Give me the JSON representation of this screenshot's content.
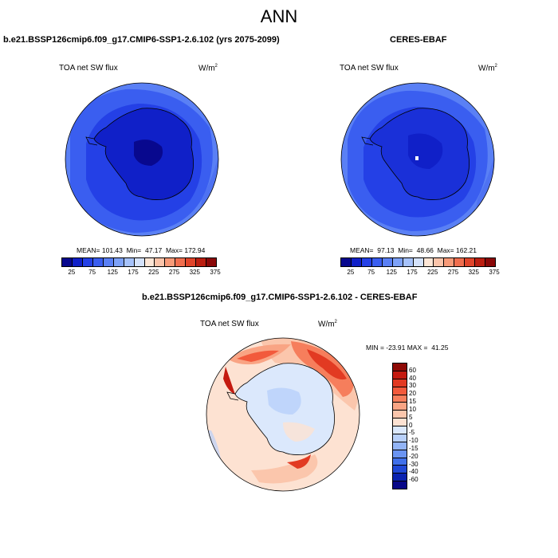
{
  "figure": {
    "title": "ANN"
  },
  "panels": [
    {
      "title": "b.e21.BSSP126cmip6.f09_g17.CMIP6-SSP1-2.6.102 (yrs 2075-2099)",
      "variable": "TOA net SW flux",
      "units": "W/m",
      "units_exp": "2",
      "stats": "MEAN= 101.43  Min=  47.17  Max= 172.94"
    },
    {
      "title": "CERES-EBAF",
      "variable": "TOA net SW flux",
      "units": "W/m",
      "units_exp": "2",
      "stats": "MEAN=  97.13  Min=  48.66  Max= 162.21"
    },
    {
      "title": "b.e21.BSSP126cmip6.f09_g17.CMIP6-SSP1-2.6.102 - CERES-EBAF",
      "variable": "TOA net SW flux",
      "units": "W/m",
      "units_exp": "2",
      "stats": "MIN = -23.91 MAX =  41.25"
    }
  ],
  "colorbar_abs": {
    "labels": [
      "25",
      "75",
      "125",
      "175",
      "225",
      "275",
      "325",
      "375"
    ],
    "colors": [
      "#08088e",
      "#1020c8",
      "#2440e6",
      "#3a5ef0",
      "#5a80f5",
      "#7ea2f8",
      "#a6c2fa",
      "#d4e2fb",
      "#fde6d6",
      "#fbc4aa",
      "#f79a78",
      "#f06e4e",
      "#e0442a",
      "#bb1e10",
      "#8a0808"
    ]
  },
  "colorbar_diff": {
    "labels": [
      "60",
      "40",
      "30",
      "20",
      "15",
      "10",
      "5",
      "0",
      "-5",
      "-10",
      "-15",
      "-20",
      "-30",
      "-40",
      "-60"
    ],
    "colors": [
      "#8e0a06",
      "#c41a10",
      "#e23a22",
      "#f25a3c",
      "#f67e5c",
      "#f9a484",
      "#fbc6ac",
      "#fde2d2",
      "#dbe8fc",
      "#b8d0fa",
      "#92b4f6",
      "#6a94f2",
      "#4070ea",
      "#2048d6",
      "#0a22b0",
      "#080888"
    ]
  }
}
